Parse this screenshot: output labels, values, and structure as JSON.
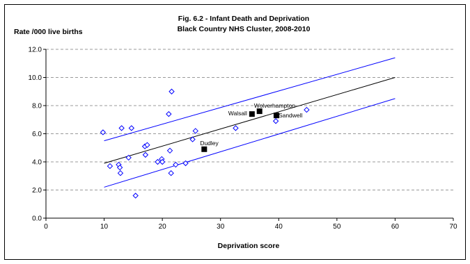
{
  "chart_data": {
    "type": "scatter",
    "title": "Fig. 6.2 - Infant Death and Deprivation",
    "subtitle": "Black Country NHS Cluster, 2008-2010",
    "ylabel": "Rate /000 live births",
    "xlabel": "Deprivation score",
    "xlim": [
      0,
      70
    ],
    "ylim": [
      0,
      12
    ],
    "x_ticks": [
      "0",
      "10",
      "20",
      "30",
      "40",
      "50",
      "60",
      "70"
    ],
    "y_ticks": [
      "0.0",
      "2.0",
      "4.0",
      "6.0",
      "8.0",
      "10.0",
      "12.0"
    ],
    "grid": "horizontal dashed",
    "colors": {
      "points": "#0000ff",
      "confidence_lines": "#0000ff",
      "trend_line": "#000000",
      "highlight": "#000000"
    },
    "series": [
      {
        "marker": "diamond",
        "values": [
          [
            9.8,
            6.1
          ],
          [
            11.0,
            3.7
          ],
          [
            12.5,
            3.8
          ],
          [
            12.7,
            3.6
          ],
          [
            12.8,
            3.2
          ],
          [
            13.0,
            6.4
          ],
          [
            14.2,
            4.3
          ],
          [
            14.7,
            6.4
          ],
          [
            15.4,
            1.6
          ],
          [
            17.0,
            5.1
          ],
          [
            17.1,
            4.5
          ],
          [
            17.4,
            5.2
          ],
          [
            19.2,
            4.0
          ],
          [
            19.9,
            4.2
          ],
          [
            20.0,
            4.0
          ],
          [
            21.1,
            7.4
          ],
          [
            21.3,
            4.8
          ],
          [
            21.5,
            3.2
          ],
          [
            21.6,
            9.0
          ],
          [
            22.3,
            3.8
          ],
          [
            24.0,
            3.9
          ],
          [
            25.2,
            5.6
          ],
          [
            25.7,
            6.2
          ],
          [
            32.6,
            6.4
          ],
          [
            39.5,
            6.9
          ],
          [
            44.8,
            7.7
          ]
        ]
      },
      {
        "marker": "square",
        "values": [
          {
            "x": 27.2,
            "y": 4.9,
            "label": "Dudley"
          },
          {
            "x": 35.4,
            "y": 7.4,
            "label": "Walsall"
          },
          {
            "x": 36.7,
            "y": 7.6,
            "label": "Wolverhampton"
          },
          {
            "x": 39.6,
            "y": 7.3,
            "label": "Sandwell"
          }
        ]
      }
    ],
    "lines": [
      {
        "role": "trend",
        "x": [
          10,
          60
        ],
        "y": [
          3.9,
          10.0
        ]
      },
      {
        "role": "upper-limit",
        "x": [
          10,
          60
        ],
        "y": [
          5.5,
          11.4
        ]
      },
      {
        "role": "lower-limit",
        "x": [
          10,
          60
        ],
        "y": [
          2.2,
          8.5
        ]
      }
    ]
  }
}
